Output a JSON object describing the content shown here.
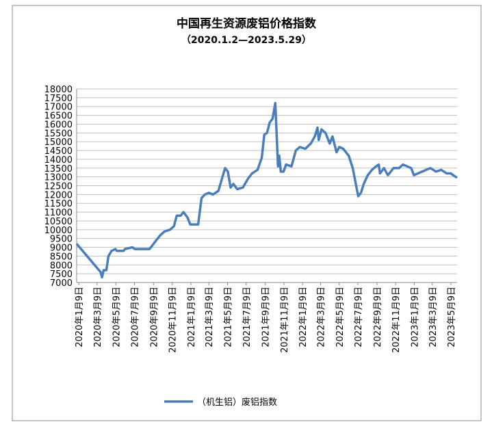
{
  "chart_data": {
    "type": "line",
    "title": "中国再生资源废铝价格指数",
    "subtitle": "（2020.1.2—2023.5.29）",
    "xlim": [
      "2020-01-02",
      "2023-05-29"
    ],
    "ylim": [
      7000,
      18000
    ],
    "yticks": [
      7000,
      7500,
      8000,
      8500,
      9000,
      9500,
      10000,
      10500,
      11000,
      11500,
      12000,
      12500,
      13000,
      13500,
      14000,
      14500,
      15000,
      15500,
      16000,
      16500,
      17000,
      17500,
      18000
    ],
    "xticks": [
      {
        "value": "2020-01-09",
        "label": "2020年1月9日"
      },
      {
        "value": "2020-03-09",
        "label": "2020年3月9日"
      },
      {
        "value": "2020-05-09",
        "label": "2020年5月9日"
      },
      {
        "value": "2020-07-09",
        "label": "2020年7月9日"
      },
      {
        "value": "2020-09-09",
        "label": "2020年9月9日"
      },
      {
        "value": "2020-11-09",
        "label": "2020年11月9日"
      },
      {
        "value": "2021-01-09",
        "label": "2021年1月9日"
      },
      {
        "value": "2021-03-09",
        "label": "2021年3月9日"
      },
      {
        "value": "2021-05-09",
        "label": "2021年5月9日"
      },
      {
        "value": "2021-07-09",
        "label": "2021年7月9日"
      },
      {
        "value": "2021-09-09",
        "label": "2021年9月9日"
      },
      {
        "value": "2021-11-09",
        "label": "2021年11月9日"
      },
      {
        "value": "2022-01-09",
        "label": "2022年1月9日"
      },
      {
        "value": "2022-03-09",
        "label": "2022年3月9日"
      },
      {
        "value": "2022-05-09",
        "label": "2022年5月9日"
      },
      {
        "value": "2022-07-09",
        "label": "2022年7月9日"
      },
      {
        "value": "2022-09-09",
        "label": "2022年9月9日"
      },
      {
        "value": "2022-11-09",
        "label": "2022年11月9日"
      },
      {
        "value": "2023-01-09",
        "label": "2023年1月9日"
      },
      {
        "value": "2023-03-09",
        "label": "2023年3月9日"
      },
      {
        "value": "2023-05-09",
        "label": "2023年5月9日"
      }
    ],
    "grid": true,
    "legend": "bottom",
    "x": [
      "2020-01-02",
      "2020-03-20",
      "2020-03-25",
      "2020-03-30",
      "2020-04-08",
      "2020-04-15",
      "2020-04-25",
      "2020-05-08",
      "2020-05-12",
      "2020-06-03",
      "2020-06-08",
      "2020-07-02",
      "2020-07-10",
      "2020-08-05",
      "2020-08-27",
      "2020-09-05",
      "2020-09-18",
      "2020-10-02",
      "2020-10-15",
      "2020-11-02",
      "2020-11-15",
      "2020-11-24",
      "2020-12-07",
      "2020-12-16",
      "2020-12-29",
      "2021-01-07",
      "2021-02-02",
      "2021-02-13",
      "2021-02-24",
      "2021-03-09",
      "2021-03-22",
      "2021-04-09",
      "2021-05-01",
      "2021-05-10",
      "2021-05-19",
      "2021-05-28",
      "2021-06-10",
      "2021-06-28",
      "2021-07-15",
      "2021-07-28",
      "2021-08-15",
      "2021-08-29",
      "2021-09-06",
      "2021-09-15",
      "2021-09-24",
      "2021-10-03",
      "2021-10-12",
      "2021-10-21",
      "2021-10-25",
      "2021-10-30",
      "2021-11-08",
      "2021-11-16",
      "2021-12-04",
      "2021-12-18",
      "2021-12-31",
      "2022-01-18",
      "2022-02-05",
      "2022-02-18",
      "2022-02-27",
      "2022-03-03",
      "2022-03-12",
      "2022-03-25",
      "2022-04-08",
      "2022-04-17",
      "2022-04-30",
      "2022-05-09",
      "2022-05-22",
      "2022-06-09",
      "2022-06-22",
      "2022-07-01",
      "2022-07-10",
      "2022-07-19",
      "2022-07-28",
      "2022-08-10",
      "2022-08-24",
      "2022-09-06",
      "2022-09-15",
      "2022-09-19",
      "2022-10-02",
      "2022-10-15",
      "2022-11-02",
      "2022-11-20",
      "2022-12-03",
      "2022-12-17",
      "2022-12-30",
      "2023-01-08",
      "2023-01-21",
      "2023-02-04",
      "2023-02-17",
      "2023-03-03",
      "2023-03-21",
      "2023-04-07",
      "2023-04-25",
      "2023-05-08",
      "2023-05-29"
    ],
    "series": [
      {
        "name": "（机生铝）废铝指数",
        "color": "#4a7ebb",
        "values": [
          9200,
          7600,
          7300,
          7700,
          7700,
          8500,
          8800,
          8900,
          8800,
          8800,
          8900,
          9000,
          8900,
          8900,
          8900,
          9100,
          9400,
          9700,
          9900,
          10000,
          10200,
          10800,
          10800,
          11000,
          10700,
          10300,
          10300,
          11800,
          12000,
          12100,
          12000,
          12200,
          13500,
          13300,
          12400,
          12600,
          12300,
          12400,
          12900,
          13200,
          13400,
          14100,
          15400,
          15500,
          16100,
          16300,
          17200,
          13600,
          14200,
          13300,
          13300,
          13700,
          13600,
          14500,
          14700,
          14600,
          14900,
          15300,
          15800,
          15100,
          15700,
          15500,
          14900,
          15300,
          14400,
          14700,
          14600,
          14200,
          13500,
          12700,
          11900,
          12100,
          12600,
          13100,
          13400,
          13600,
          13700,
          13200,
          13500,
          13100,
          13500,
          13500,
          13700,
          13600,
          13500,
          13100,
          13200,
          13300,
          13400,
          13500,
          13300,
          13400,
          13200,
          13200,
          12950
        ]
      }
    ]
  }
}
